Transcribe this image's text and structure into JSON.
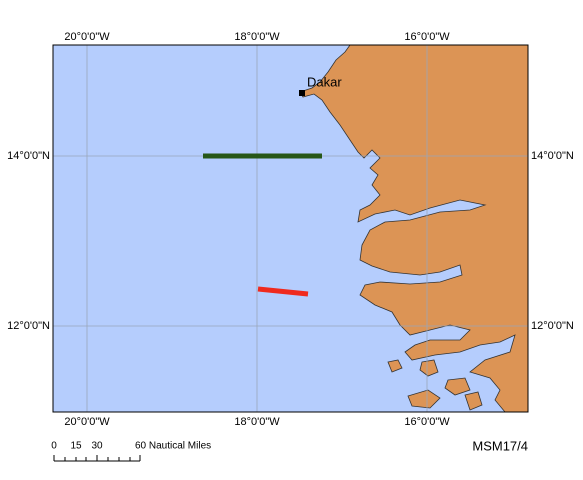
{
  "map": {
    "longitude_labels": [
      "20°0'0\"W",
      "18°0'0\"W",
      "16°0'0\"W"
    ],
    "latitude_labels": [
      "14°0'0\"N",
      "12°0'0\"N"
    ],
    "place_label": "Dakar",
    "scale_bar": {
      "labels": [
        "0",
        "15",
        "30",
        "60 Nautical Miles"
      ]
    },
    "cruise_label": "MSM17/4"
  }
}
